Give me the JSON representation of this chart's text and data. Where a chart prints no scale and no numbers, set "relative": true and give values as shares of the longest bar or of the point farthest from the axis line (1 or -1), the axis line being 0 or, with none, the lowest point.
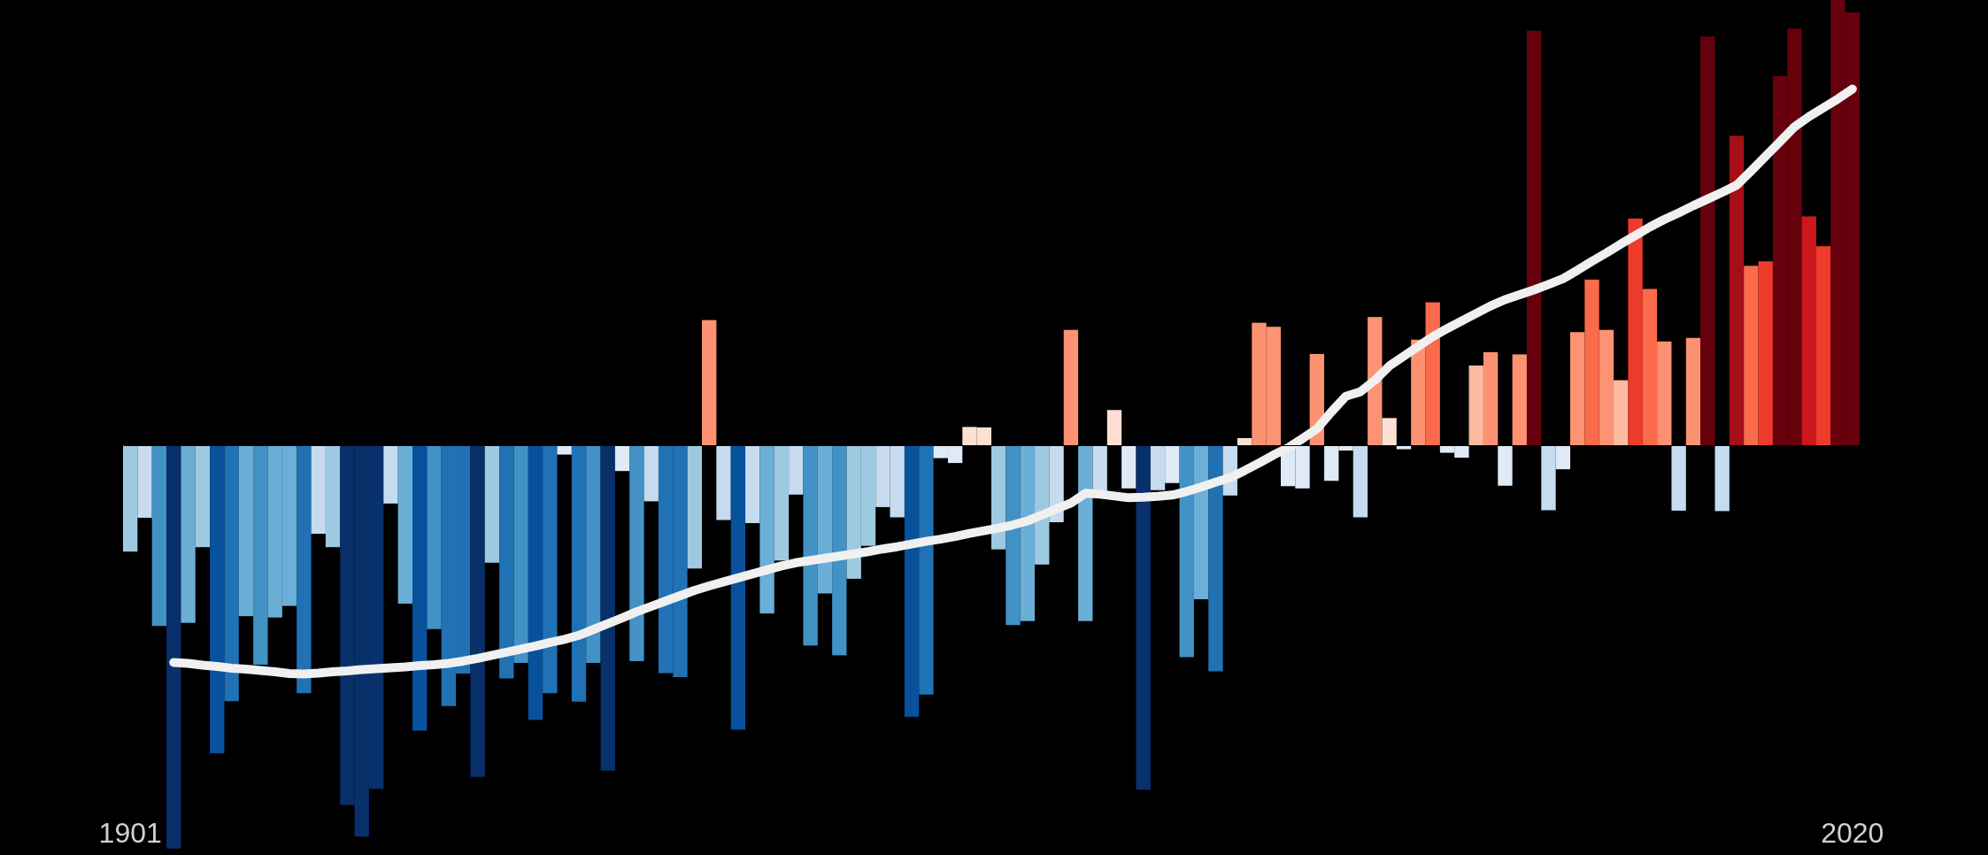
{
  "chart_data": {
    "type": "bar",
    "relative": true,
    "categories": [
      "1901",
      null,
      null,
      null,
      null,
      null,
      null,
      null,
      null,
      null,
      null,
      null,
      null,
      null,
      null,
      null,
      null,
      null,
      null,
      null,
      null,
      null,
      null,
      null,
      null,
      null,
      null,
      null,
      null,
      null,
      null,
      null,
      null,
      null,
      null,
      null,
      null,
      null,
      null,
      null,
      null,
      null,
      null,
      null,
      null,
      null,
      null,
      null,
      null,
      null,
      null,
      null,
      null,
      null,
      null,
      null,
      null,
      null,
      null,
      null,
      null,
      null,
      null,
      null,
      null,
      null,
      null,
      null,
      null,
      null,
      null,
      null,
      null,
      null,
      null,
      null,
      null,
      null,
      null,
      null,
      null,
      null,
      null,
      null,
      null,
      null,
      null,
      null,
      null,
      null,
      null,
      null,
      null,
      null,
      null,
      null,
      null,
      null,
      null,
      null,
      null,
      null,
      null,
      null,
      null,
      null,
      null,
      null,
      null,
      null,
      null,
      null,
      null,
      null,
      null,
      null,
      null,
      null,
      null,
      "2020"
    ],
    "series": [
      {
        "values": [
          -0.239,
          -0.163,
          -0.406,
          -0.906,
          -0.399,
          -0.229,
          -0.692,
          -0.575,
          -0.384,
          -0.493,
          -0.387,
          -0.361,
          -0.557,
          -0.199,
          -0.229,
          -0.808,
          -0.879,
          -0.772,
          -0.131,
          -0.356,
          -0.641,
          -0.413,
          -0.586,
          -0.513,
          -0.745,
          -0.264,
          -0.524,
          -0.489,
          -0.617,
          -0.557,
          -0.021,
          -0.576,
          -0.489,
          -0.731,
          -0.058,
          -0.485,
          -0.126,
          -0.512,
          -0.521,
          -0.277,
          0.281,
          -0.168,
          -0.639,
          -0.175,
          -0.378,
          -0.259,
          -0.111,
          -0.45,
          -0.333,
          -0.472,
          -0.3,
          -0.226,
          -0.139,
          -0.162,
          -0.61,
          -0.56,
          -0.029,
          -0.04,
          0.041,
          0.04,
          -0.234,
          -0.404,
          -0.395,
          -0.268,
          -0.173,
          0.259,
          -0.395,
          -0.103,
          0.079,
          -0.097,
          -0.774,
          -0.101,
          -0.085,
          -0.476,
          -0.346,
          -0.508,
          -0.113,
          0.016,
          0.275,
          0.266,
          -0.092,
          -0.097,
          0.205,
          -0.08,
          -0.012,
          -0.162,
          0.288,
          0.061,
          -0.009,
          0.237,
          0.321,
          -0.017,
          -0.028,
          0.179,
          0.209,
          -0.091,
          0.204,
          0.931,
          -0.146,
          -0.054,
          0.254,
          0.372,
          0.259,
          0.146,
          0.509,
          0.351,
          0.233,
          -0.147,
          0.241,
          0.918,
          -0.148,
          0.695,
          0.403,
          0.413,
          0.829,
          0.936,
          0.514,
          0.447,
          1.0,
          0.972
        ],
        "colors": [
          "#9ecae1",
          "#c6dbef",
          "#4292c6",
          "#08306b",
          "#6baed6",
          "#9ecae1",
          "#08519c",
          "#2171b5",
          "#6baed6",
          "#4292c6",
          "#6baed6",
          "#6baed6",
          "#2171b5",
          "#c6dbef",
          "#9ecae1",
          "#08306b",
          "#08306b",
          "#08306b",
          "#c6dbef",
          "#6baed6",
          "#08519c",
          "#4292c6",
          "#2171b5",
          "#2171b5",
          "#08306b",
          "#9ecae1",
          "#2171b5",
          "#4292c6",
          "#08519c",
          "#2171b5",
          "#deebf7",
          "#2171b5",
          "#4292c6",
          "#08306b",
          "#deebf7",
          "#4292c6",
          "#c6dbef",
          "#2171b5",
          "#2171b5",
          "#9ecae1",
          "#fc9272",
          "#c6dbef",
          "#08519c",
          "#c6dbef",
          "#6baed6",
          "#9ecae1",
          "#c6dbef",
          "#4292c6",
          "#6baed6",
          "#4292c6",
          "#9ecae1",
          "#9ecae1",
          "#c6dbef",
          "#c6dbef",
          "#08519c",
          "#2171b5",
          "#deebf7",
          "#deebf7",
          "#fee0d2",
          "#fee0d2",
          "#9ecae1",
          "#4292c6",
          "#6baed6",
          "#9ecae1",
          "#c6dbef",
          "#fc9272",
          "#6baed6",
          "#c6dbef",
          "#fee0d2",
          "#deebf7",
          "#08306b",
          "#c6dbef",
          "#deebf7",
          "#4292c6",
          "#6baed6",
          "#2171b5",
          "#c6dbef",
          "#fee0d2",
          "#fc9272",
          "#fc9272",
          "#deebf7",
          "#deebf7",
          "#fc9272",
          "#deebf7",
          "#deebf7",
          "#c6dbef",
          "#fc9272",
          "#fee0d2",
          "#deebf7",
          "#fc9272",
          "#fb6a4a",
          "#deebf7",
          "#deebf7",
          "#fcbba1",
          "#fc9272",
          "#deebf7",
          "#fc9272",
          "#67000d",
          "#c6dbef",
          "#deebf7",
          "#fc9272",
          "#fb6a4a",
          "#fc9272",
          "#fcbba1",
          "#ef3b2c",
          "#fb6a4a",
          "#fc9272",
          "#c6dbef",
          "#fc9272",
          "#67000d",
          "#c6dbef",
          "#a50f15",
          "#fb6a4a",
          "#ef3b2c",
          "#67000d",
          "#67000d",
          "#cb181d",
          "#ef3b2c",
          "#67000d",
          "#67000d"
        ]
      },
      {
        "type": "line",
        "color": "#f0f0f0",
        "values": [
          null,
          null,
          null,
          -0.488,
          -0.49,
          -0.494,
          -0.497,
          -0.501,
          -0.503,
          -0.506,
          -0.509,
          -0.513,
          -0.514,
          -0.512,
          -0.509,
          -0.507,
          -0.504,
          -0.502,
          -0.5,
          -0.498,
          -0.495,
          -0.493,
          -0.49,
          -0.485,
          -0.479,
          -0.472,
          -0.465,
          -0.458,
          -0.451,
          -0.443,
          -0.436,
          -0.427,
          -0.414,
          -0.401,
          -0.388,
          -0.374,
          -0.362,
          -0.35,
          -0.338,
          -0.326,
          -0.316,
          -0.307,
          -0.298,
          -0.289,
          -0.28,
          -0.271,
          -0.264,
          -0.259,
          -0.254,
          -0.249,
          -0.244,
          -0.239,
          -0.233,
          -0.228,
          -0.222,
          -0.216,
          -0.211,
          -0.205,
          -0.198,
          -0.192,
          -0.186,
          -0.179,
          -0.17,
          -0.157,
          -0.143,
          -0.13,
          -0.108,
          -0.11,
          -0.114,
          -0.118,
          -0.117,
          -0.115,
          -0.112,
          -0.104,
          -0.094,
          -0.083,
          -0.073,
          -0.057,
          -0.04,
          -0.022,
          -0.006,
          0.015,
          0.037,
          0.075,
          0.11,
          0.12,
          0.146,
          0.178,
          0.2,
          0.222,
          0.244,
          0.262,
          0.279,
          0.296,
          0.313,
          0.327,
          0.338,
          0.349,
          0.361,
          0.374,
          0.393,
          0.413,
          0.432,
          0.452,
          0.471,
          0.49,
          0.507,
          0.522,
          0.538,
          0.553,
          0.568,
          0.584,
          0.616,
          0.649,
          0.682,
          0.715,
          0.738,
          0.758,
          0.778,
          0.8
        ]
      }
    ]
  }
}
